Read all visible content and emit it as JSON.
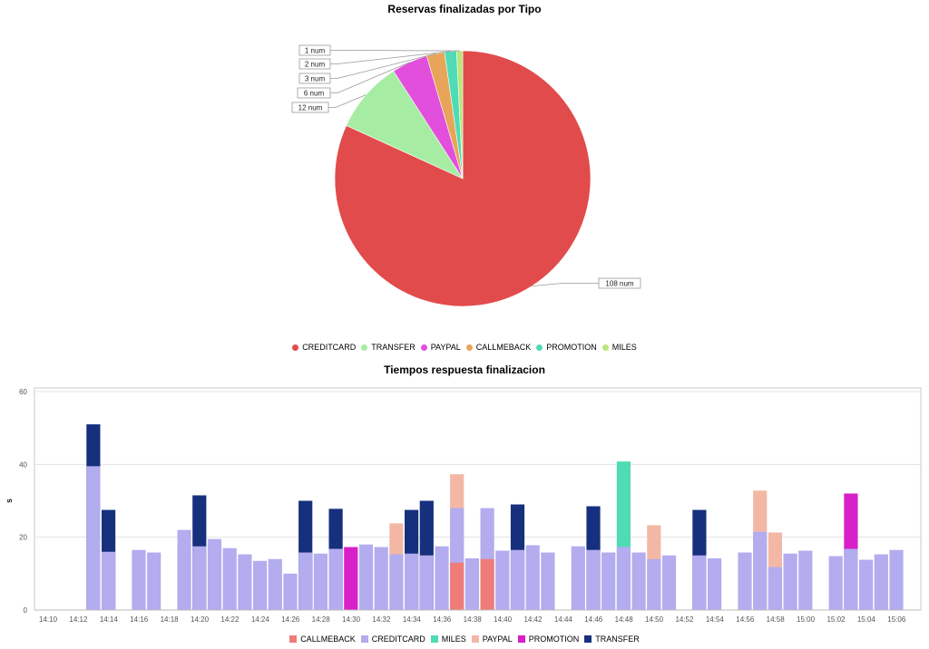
{
  "pie_chart": {
    "title": "Reservas finalizadas por Tipo",
    "legend": [
      {
        "label": "CREDITCARD",
        "color": "#e24b4b"
      },
      {
        "label": "TRANSFER",
        "color": "#a6eda3"
      },
      {
        "label": "PAYPAL",
        "color": "#e14fdc"
      },
      {
        "label": "CALLMEBACK",
        "color": "#e8a55a"
      },
      {
        "label": "PROMOTION",
        "color": "#4fdbb6"
      },
      {
        "label": "MILES",
        "color": "#b9e67a"
      }
    ],
    "slice_labels": [
      "108 num",
      "12 num",
      "6 num",
      "3 num",
      "2 num",
      "1 num"
    ]
  },
  "bar_chart": {
    "title": "Tiempos respuesta finalizacion",
    "ylabel": "s",
    "yticks": [
      "0",
      "20",
      "40",
      "60"
    ],
    "xticks": [
      "14:10",
      "14:12",
      "14:14",
      "14:16",
      "14:18",
      "14:20",
      "14:22",
      "14:24",
      "14:26",
      "14:28",
      "14:30",
      "14:32",
      "14:34",
      "14:36",
      "14:38",
      "14:40",
      "14:42",
      "14:44",
      "14:46",
      "14:48",
      "14:50",
      "14:52",
      "14:54",
      "14:56",
      "14:58",
      "15:00",
      "15:02",
      "15:04",
      "15:06"
    ],
    "legend": [
      {
        "label": "CALLMEBACK",
        "color": "#ef7c78"
      },
      {
        "label": "CREDITCARD",
        "color": "#b3acef"
      },
      {
        "label": "MILES",
        "color": "#4fdbb6"
      },
      {
        "label": "PAYPAL",
        "color": "#f3b8a5"
      },
      {
        "label": "PROMOTION",
        "color": "#d81fc8"
      },
      {
        "label": "TRANSFER",
        "color": "#17307e"
      }
    ]
  },
  "chart_data": [
    {
      "type": "pie",
      "title": "Reservas finalizadas por Tipo",
      "slices": [
        {
          "label": "CREDITCARD",
          "value": 108,
          "color": "#e24b4b"
        },
        {
          "label": "TRANSFER",
          "value": 12,
          "color": "#a6eda3"
        },
        {
          "label": "PAYPAL",
          "value": 6,
          "color": "#e14fdc"
        },
        {
          "label": "CALLMEBACK",
          "value": 3,
          "color": "#e8a55a"
        },
        {
          "label": "PROMOTION",
          "value": 2,
          "color": "#4fdbb6"
        },
        {
          "label": "MILES",
          "value": 1,
          "color": "#b9e67a"
        }
      ],
      "legend_position": "bottom"
    },
    {
      "type": "bar",
      "title": "Tiempos respuesta finalizacion",
      "xlabel": "",
      "ylabel": "s",
      "ylim": [
        0,
        60
      ],
      "grid": true,
      "legend_position": "bottom",
      "x_range": [
        "14:10",
        "15:07"
      ],
      "bars": [
        {
          "time": "14:13",
          "CREDITCARD": 39.5,
          "TRANSFER": 51
        },
        {
          "time": "14:14",
          "CREDITCARD": 16,
          "TRANSFER": 27.5
        },
        {
          "time": "14:16",
          "CREDITCARD": 16.5
        },
        {
          "time": "14:17",
          "CREDITCARD": 15.8
        },
        {
          "time": "14:19",
          "CREDITCARD": 22
        },
        {
          "time": "14:20",
          "CREDITCARD": 17.5,
          "TRANSFER": 31.5
        },
        {
          "time": "14:21",
          "CREDITCARD": 19.5
        },
        {
          "time": "14:22",
          "CREDITCARD": 17
        },
        {
          "time": "14:23",
          "CREDITCARD": 15.3
        },
        {
          "time": "14:24",
          "CREDITCARD": 13.5
        },
        {
          "time": "14:25",
          "CREDITCARD": 14
        },
        {
          "time": "14:26",
          "CREDITCARD": 10
        },
        {
          "time": "14:27",
          "CREDITCARD": 15.8,
          "TRANSFER": 30
        },
        {
          "time": "14:28",
          "CREDITCARD": 15.5
        },
        {
          "time": "14:29",
          "CREDITCARD": 16.8,
          "TRANSFER": 27.8
        },
        {
          "time": "14:30",
          "PROMOTION": 17.3
        },
        {
          "time": "14:31",
          "CREDITCARD": 18
        },
        {
          "time": "14:32",
          "CREDITCARD": 17.3
        },
        {
          "time": "14:33",
          "CREDITCARD": 15.3,
          "PAYPAL": 23.8
        },
        {
          "time": "14:34",
          "CREDITCARD": 15.5,
          "TRANSFER": 27.5
        },
        {
          "time": "14:35",
          "CREDITCARD": 15,
          "TRANSFER": 30
        },
        {
          "time": "14:36",
          "CREDITCARD": 17.5
        },
        {
          "time": "14:37",
          "CALLMEBACK": 13,
          "CREDITCARD": 28,
          "PAYPAL": 37.3
        },
        {
          "time": "14:38",
          "CREDITCARD": 14.2
        },
        {
          "time": "14:39",
          "CALLMEBACK": 14,
          "CREDITCARD": 28
        },
        {
          "time": "14:40",
          "CREDITCARD": 16.3
        },
        {
          "time": "14:41",
          "CREDITCARD": 16.5,
          "TRANSFER": 29
        },
        {
          "time": "14:42",
          "CREDITCARD": 17.8
        },
        {
          "time": "14:43",
          "CREDITCARD": 15.8
        },
        {
          "time": "14:45",
          "CREDITCARD": 17.5
        },
        {
          "time": "14:46",
          "CREDITCARD": 16.5,
          "TRANSFER": 28.5
        },
        {
          "time": "14:47",
          "CREDITCARD": 15.8
        },
        {
          "time": "14:48",
          "CREDITCARD": 17.3,
          "MILES": 40.8
        },
        {
          "time": "14:49",
          "CREDITCARD": 15.8
        },
        {
          "time": "14:50",
          "CREDITCARD": 14,
          "PAYPAL": 23.3
        },
        {
          "time": "14:51",
          "CREDITCARD": 15
        },
        {
          "time": "14:53",
          "CREDITCARD": 15,
          "TRANSFER": 27.5
        },
        {
          "time": "14:54",
          "CREDITCARD": 14.2
        },
        {
          "time": "14:56",
          "CREDITCARD": 15.8
        },
        {
          "time": "14:57",
          "CREDITCARD": 21.5,
          "PAYPAL": 32.8
        },
        {
          "time": "14:58",
          "CREDITCARD": 11.8,
          "PAYPAL": 21.3
        },
        {
          "time": "14:59",
          "CREDITCARD": 15.5
        },
        {
          "time": "15:00",
          "CREDITCARD": 16.3
        },
        {
          "time": "15:02",
          "CREDITCARD": 14.8
        },
        {
          "time": "15:03",
          "CREDITCARD": 16.8,
          "PROMOTION": 32
        },
        {
          "time": "15:04",
          "CREDITCARD": 13.8
        },
        {
          "time": "15:05",
          "CREDITCARD": 15.3
        },
        {
          "time": "15:06",
          "CREDITCARD": 16.5
        }
      ]
    }
  ]
}
